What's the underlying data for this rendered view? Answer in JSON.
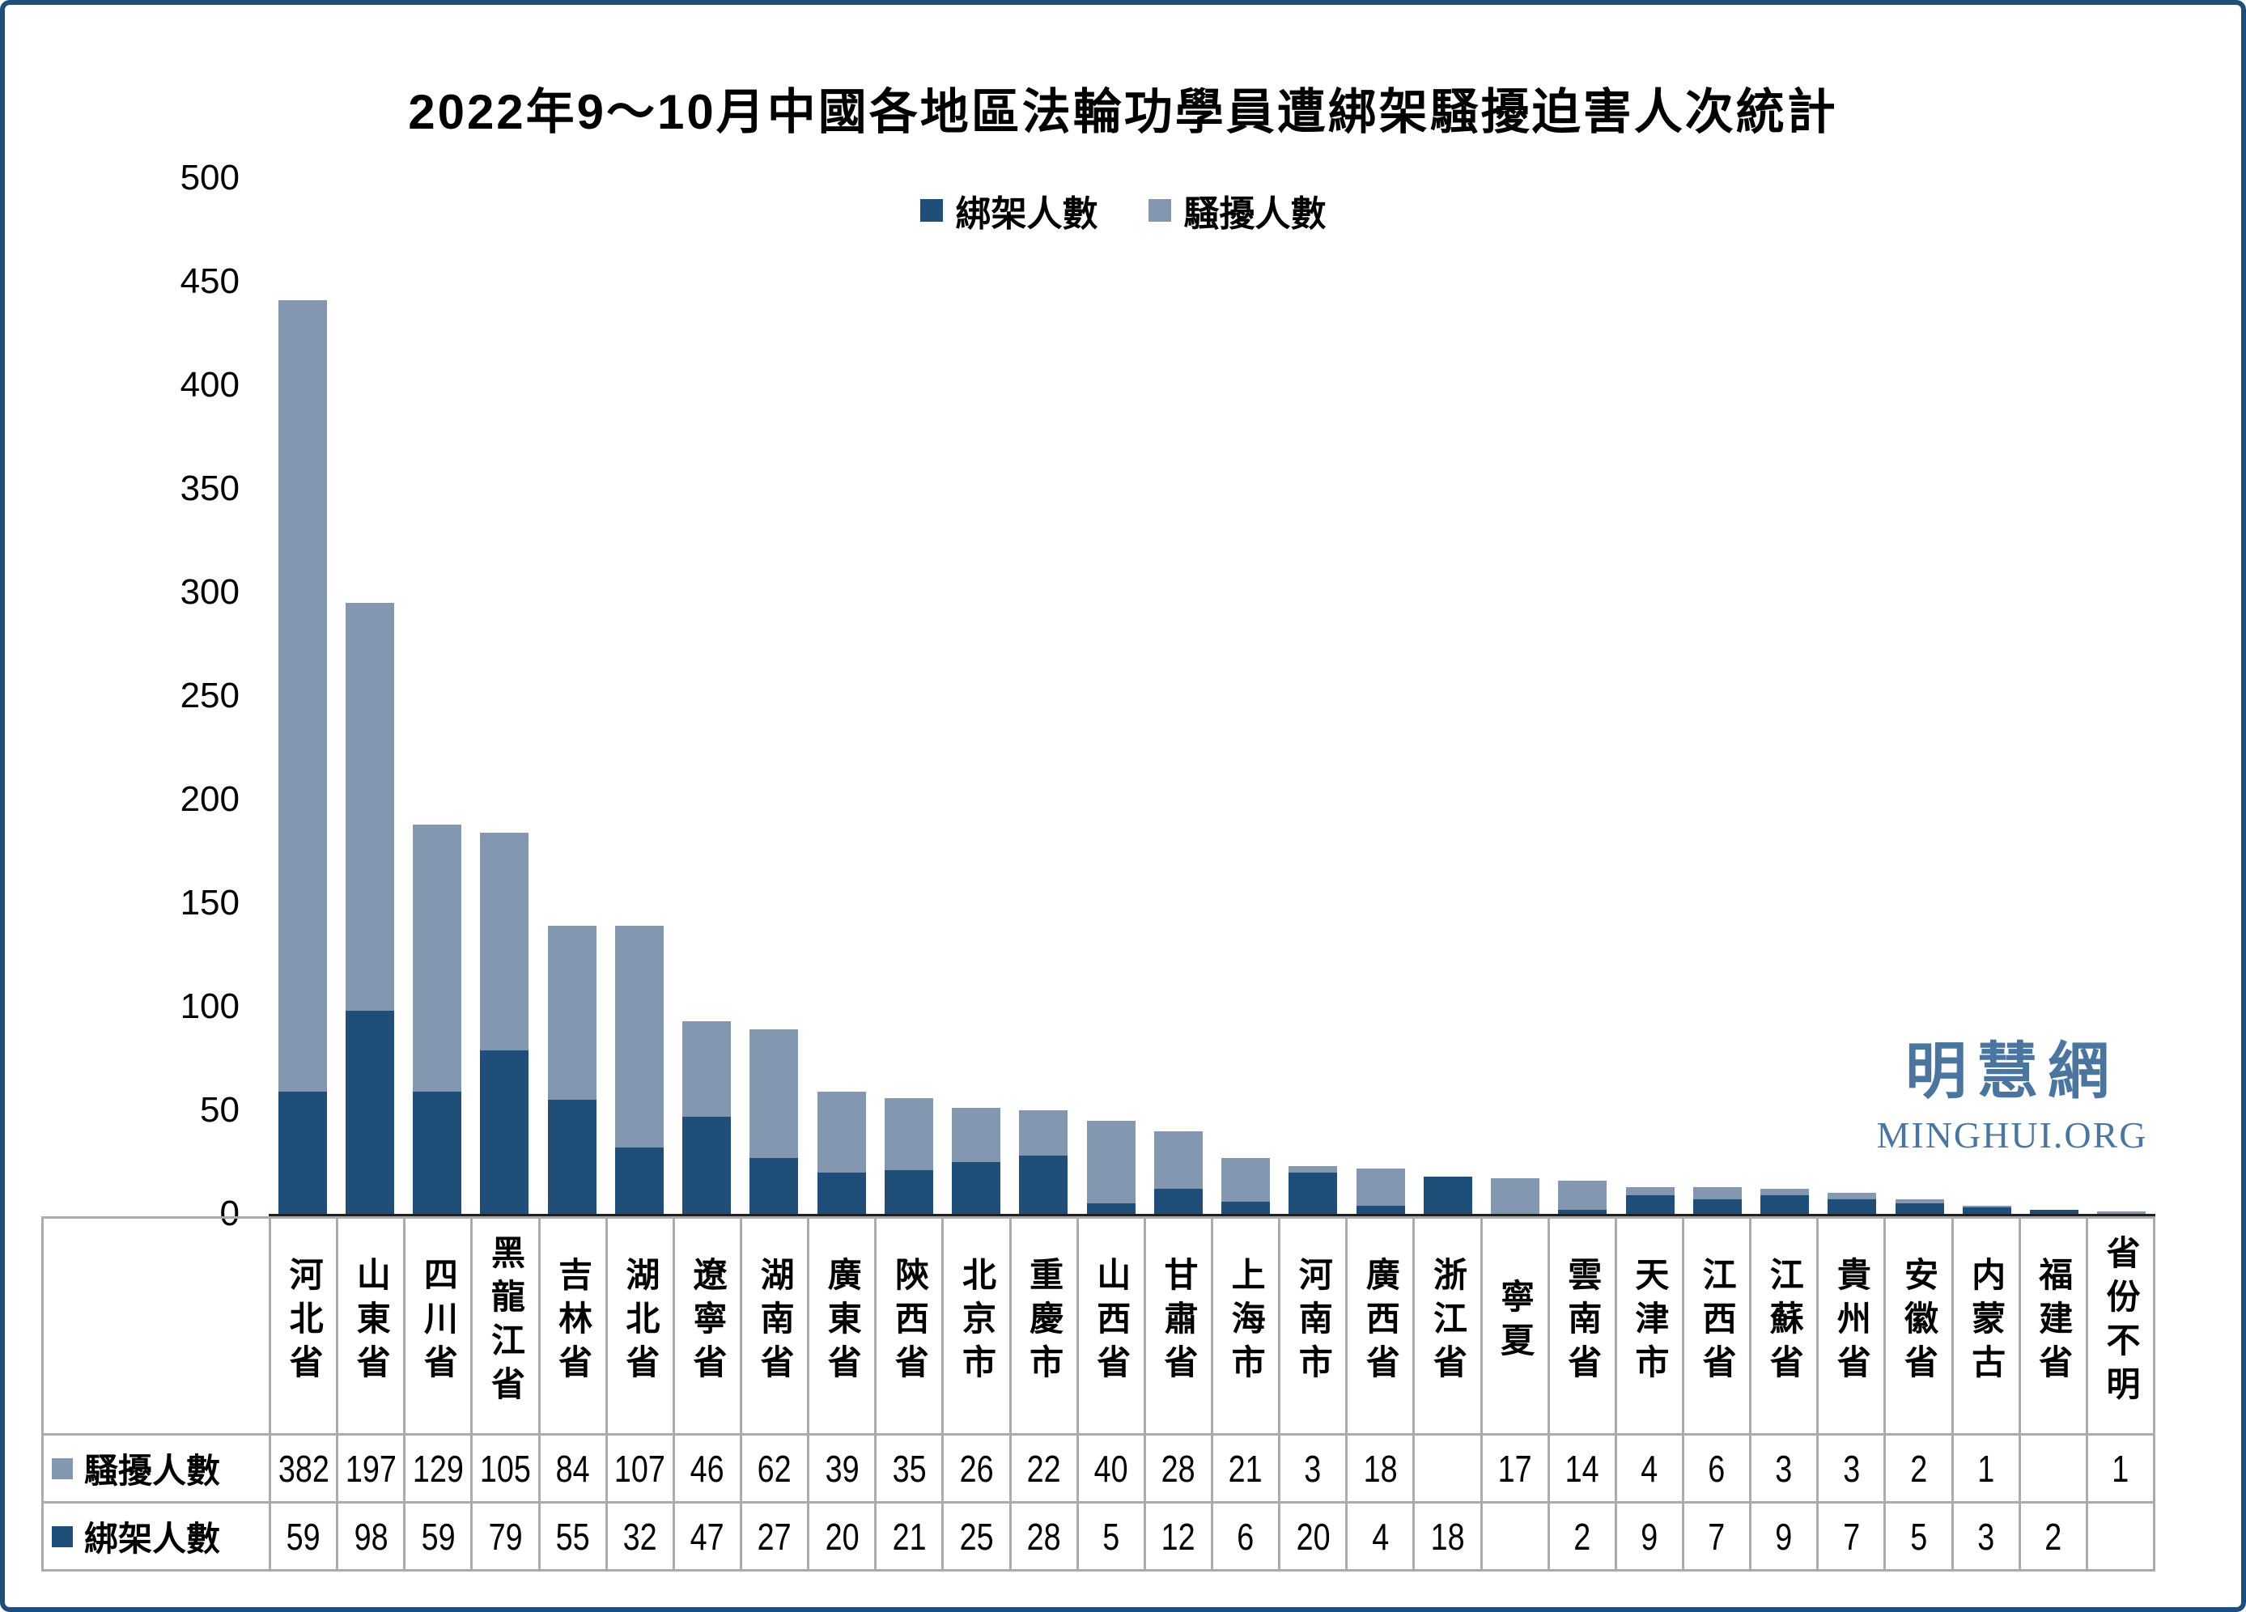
{
  "watermark": {
    "chinese": "明慧網",
    "english": "MINGHUI.ORG"
  },
  "colors": {
    "kidnapped": "#1F4E79",
    "harassed": "#8497B0",
    "frame_border": "#1F4E79",
    "grid": "#ABABAB",
    "axis": "#1f1f1f",
    "watermark": "#4A759E"
  },
  "chart_data": {
    "type": "bar",
    "stacked": true,
    "title": "2022年9～10月中國各地區法輪功學員遭綁架騷擾迫害人次統計",
    "categories": [
      "河北省",
      "山東省",
      "四川省",
      "黑龍江省",
      "吉林省",
      "湖北省",
      "遼寧省",
      "湖南省",
      "廣東省",
      "陝西省",
      "北京市",
      "重慶市",
      "山西省",
      "甘肅省",
      "上海市",
      "河南市",
      "廣西省",
      "浙江省",
      "寧夏",
      "雲南省",
      "天津市",
      "江西省",
      "江蘇省",
      "貴州省",
      "安徽省",
      "内蒙古",
      "福建省",
      "省份不明"
    ],
    "series": [
      {
        "name": "綁架人數",
        "color": "#1F4E79",
        "stack_order": "bottom",
        "values": [
          59,
          98,
          59,
          79,
          55,
          32,
          47,
          27,
          20,
          21,
          25,
          28,
          5,
          12,
          6,
          20,
          4,
          18,
          null,
          2,
          9,
          7,
          9,
          7,
          5,
          3,
          2,
          null
        ]
      },
      {
        "name": "騷擾人數",
        "color": "#8497B0",
        "stack_order": "top",
        "values": [
          382,
          197,
          129,
          105,
          84,
          107,
          46,
          62,
          39,
          35,
          26,
          22,
          40,
          28,
          21,
          3,
          18,
          null,
          17,
          14,
          4,
          6,
          3,
          3,
          2,
          1,
          null,
          1
        ]
      }
    ],
    "xlabel": "",
    "ylabel": "",
    "ylim": [
      0,
      500
    ],
    "yticks": [
      0,
      50,
      100,
      150,
      200,
      250,
      300,
      350,
      400,
      450,
      500
    ],
    "grid": false,
    "legend_position": "top",
    "data_table_shown": true,
    "data_table_row_order": [
      "騷擾人數",
      "綁架人數"
    ]
  }
}
